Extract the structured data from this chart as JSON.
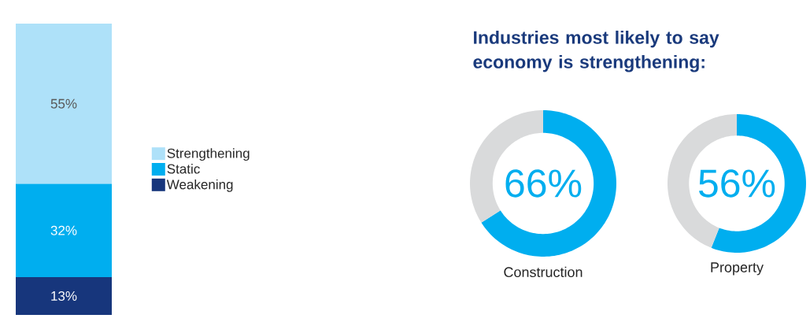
{
  "chart_data": [
    {
      "type": "bar",
      "stacked": true,
      "categories": [
        null
      ],
      "legend": "right",
      "series": [
        {
          "name": "Weakening",
          "color": "#17367c",
          "values": [
            13
          ],
          "value_labels": [
            "13%"
          ]
        },
        {
          "name": "Static",
          "color": "#00aeef",
          "values": [
            32
          ],
          "value_labels": [
            "32%"
          ]
        },
        {
          "name": "Strengthening",
          "color": "#aee1f9",
          "values": [
            55
          ],
          "value_labels": [
            "55%"
          ]
        }
      ]
    },
    {
      "type": "donut",
      "title": "Industries most likely to say economy is strengthening:",
      "xlabel": "Construction",
      "categories": [
        null,
        null
      ],
      "values": [
        66,
        34
      ],
      "colors": [
        "#00aeef",
        "#d9dadb"
      ],
      "value_labels": [
        "66%",
        null
      ]
    },
    {
      "type": "donut",
      "xlabel": "Property",
      "categories": [
        null,
        null
      ],
      "values": [
        56,
        44
      ],
      "colors": [
        "#00aeef",
        "#d9dadb"
      ],
      "value_labels": [
        "56%",
        null
      ]
    }
  ]
}
